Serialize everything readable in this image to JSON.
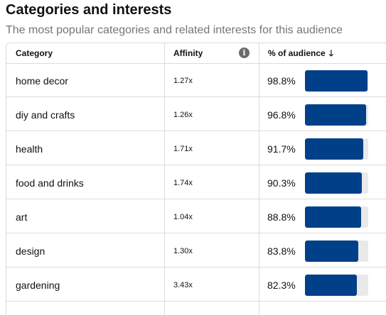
{
  "header": {
    "title": "Categories and interests",
    "subtitle": "The most popular categories and related interests for this audience"
  },
  "table": {
    "columns": {
      "category": "Category",
      "affinity": "Affinity",
      "audience": "% of audience"
    },
    "info_icon": "info-icon",
    "sort_icon": "arrow-down-icon",
    "sort_glyph": "🡓",
    "info_glyph": "i",
    "rows": [
      {
        "category": "home decor",
        "affinity": "1.27x",
        "percent": "98.8%",
        "value": 98.8
      },
      {
        "category": "diy and crafts",
        "affinity": "1.26x",
        "percent": "96.8%",
        "value": 96.8
      },
      {
        "category": "health",
        "affinity": "1.71x",
        "percent": "91.7%",
        "value": 91.7
      },
      {
        "category": "food and drinks",
        "affinity": "1.74x",
        "percent": "90.3%",
        "value": 90.3
      },
      {
        "category": "art",
        "affinity": "1.04x",
        "percent": "88.8%",
        "value": 88.8
      },
      {
        "category": "design",
        "affinity": "1.30x",
        "percent": "83.8%",
        "value": 83.8
      },
      {
        "category": "gardening",
        "affinity": "3.43x",
        "percent": "82.3%",
        "value": 82.3
      }
    ]
  },
  "colors": {
    "bar_fill": "#004089",
    "bar_track": "#e9e9e9",
    "border": "#dcdcdc",
    "subtitle": "#767676"
  }
}
